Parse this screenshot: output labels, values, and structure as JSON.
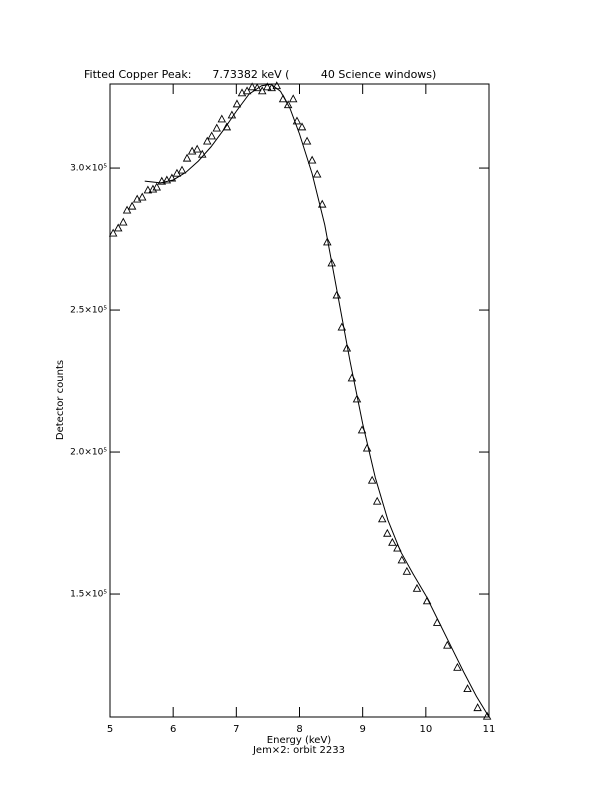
{
  "chart_data": {
    "type": "scatter",
    "title": "Fitted Copper Peak:      7.73382 keV (         40 Science windows)",
    "x_label": "Energy (keV)",
    "subtitle": "Jem×2: orbit 2233",
    "y_label": "Detector counts",
    "xlim": [
      5,
      11
    ],
    "xticks": [
      5,
      6,
      7,
      8,
      9,
      10,
      11
    ],
    "ylim": [
      106700,
      329600
    ],
    "yticks": [
      {
        "value": 150000,
        "label": "1.5×10⁵"
      },
      {
        "value": 200000,
        "label": "2.0×10⁵"
      },
      {
        "value": 250000,
        "label": "2.5×10⁵"
      },
      {
        "value": 300000,
        "label": "3.0×10⁵"
      }
    ],
    "color": "#000000",
    "series": [
      {
        "style": "triangle",
        "x": [
          5.05,
          5.13,
          5.21,
          5.27,
          5.35,
          5.43,
          5.51,
          5.6,
          5.68,
          5.74,
          5.82,
          5.9,
          5.98,
          6.06,
          6.14,
          6.22,
          6.3,
          6.38,
          6.46,
          6.54,
          6.61,
          6.69,
          6.77,
          6.85,
          6.93,
          7.01,
          7.09,
          7.17,
          7.25,
          7.33,
          7.41,
          7.49,
          7.56,
          7.64,
          7.74,
          7.82,
          7.9,
          7.96,
          8.04,
          8.12,
          8.2,
          8.28,
          8.36,
          8.44,
          8.51,
          8.59,
          8.67,
          8.75,
          8.83,
          8.91,
          8.99,
          9.07,
          9.15,
          9.23,
          9.31,
          9.39,
          9.47,
          9.55,
          9.62,
          9.7,
          9.86,
          10.02,
          10.18,
          10.34,
          10.5,
          10.66,
          10.82,
          10.97
        ],
        "values": [
          277100,
          278900,
          281000,
          285200,
          286600,
          289100,
          289800,
          292300,
          292600,
          293300,
          295400,
          295800,
          296500,
          298200,
          299300,
          303500,
          306000,
          306700,
          304900,
          309500,
          311300,
          314100,
          317300,
          314500,
          318700,
          322600,
          326500,
          327200,
          328600,
          328300,
          327200,
          328600,
          328300,
          329000,
          324400,
          322300,
          324400,
          316600,
          314500,
          309500,
          302800,
          297900,
          287300,
          274000,
          266600,
          255300,
          244000,
          236600,
          226100,
          218700,
          207800,
          201400,
          190100,
          182700,
          176500,
          171400,
          168200,
          166200,
          162000,
          158000,
          152000,
          147600,
          140000,
          132000,
          124200,
          116700,
          110000,
          107000
        ]
      },
      {
        "style": "line",
        "x": [
          5.55,
          5.8,
          6.0,
          6.2,
          6.4,
          6.6,
          6.8,
          7.0,
          7.2,
          7.4,
          7.55,
          7.7,
          7.85,
          8.0,
          8.2,
          8.4,
          8.6,
          8.8,
          9.0,
          9.2,
          9.4,
          9.6,
          9.8,
          10.0,
          10.2,
          10.4,
          10.6,
          10.8,
          11.0
        ],
        "values": [
          295400,
          294800,
          295800,
          298500,
          302500,
          307500,
          313500,
          320000,
          326000,
          329000,
          329500,
          327000,
          321000,
          312000,
          298000,
          280000,
          256000,
          232000,
          210000,
          191000,
          176000,
          165000,
          157000,
          149500,
          140500,
          131500,
          122500,
          114000,
          106700
        ]
      }
    ]
  }
}
